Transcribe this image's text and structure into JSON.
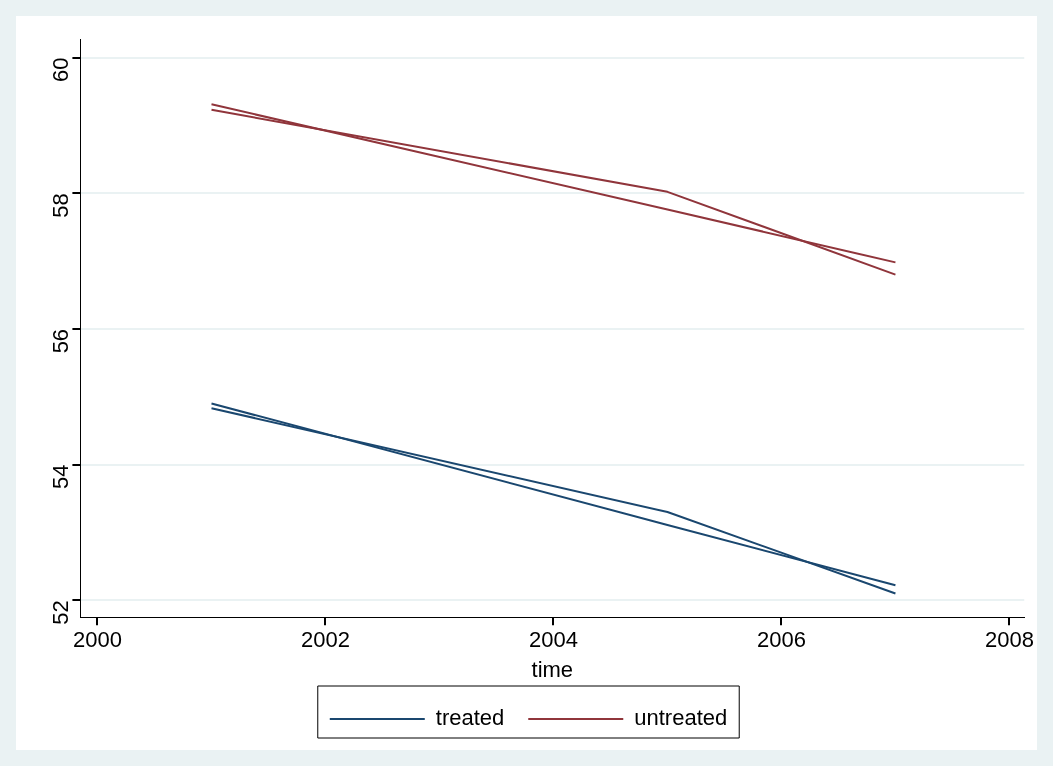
{
  "chart_data": {
    "type": "line",
    "xlabel": "time",
    "x": [
      2001,
      2005,
      2007
    ],
    "series": [
      {
        "name": "treated",
        "color": "#1a476f",
        "values": [
          54.83,
          53.3,
          52.1
        ]
      },
      {
        "name": "untreated",
        "color": "#90353b",
        "values": [
          59.23,
          58.02,
          56.8
        ]
      },
      {
        "type": "line",
        "color": "#1a476f",
        "values": [
          54.9,
          53.11,
          52.22
        ]
      },
      {
        "type": "line",
        "color": "#90353b",
        "values": [
          59.31,
          57.76,
          56.98
        ]
      }
    ],
    "xlim": [
      1999.85,
      2008.13
    ],
    "xticks": [
      2000,
      2002,
      2004,
      2006,
      2008
    ],
    "ylim": [
      51.75,
      60.27
    ],
    "yticks": [
      52,
      54,
      56,
      58,
      60
    ],
    "grid": "y",
    "legend": "bottom",
    "marker": "none",
    "line_style": "solid"
  }
}
